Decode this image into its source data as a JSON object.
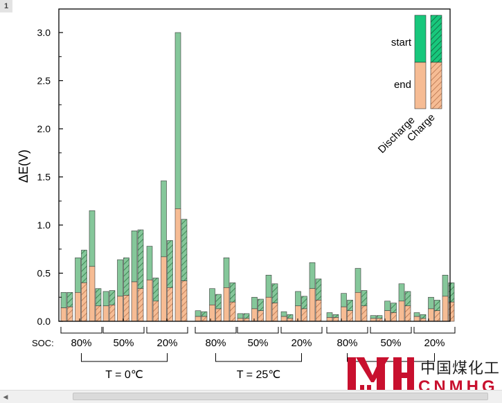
{
  "tab_number": "1",
  "chart_data": {
    "type": "bar",
    "ylabel": "ΔE(V)",
    "ylim": [
      0,
      3.25
    ],
    "yticks": [
      "0.0",
      "0.5",
      "1.0",
      "1.5",
      "2.0",
      "2.5",
      "3.0"
    ],
    "soc_label": "SOC:",
    "soc_groups": [
      "80%",
      "50%",
      "20%",
      "80%",
      "50%",
      "20%",
      "80%",
      "50%",
      "20%"
    ],
    "temperature_groups": [
      "T = 0℃",
      "T = 25℃"
    ],
    "legend": {
      "start": "start",
      "end": "end",
      "discharge": "Discharge",
      "charge": "Charge"
    },
    "colors": {
      "start": "#85c79a",
      "end": "#f6bc94",
      "charge_hatch": "#2f7a45",
      "end_hatch": "#b06b45",
      "legend_start": "#18c77c"
    },
    "clusters": [
      {
        "soc": "80%",
        "pairs": [
          {
            "discharge": {
              "end": 0.14,
              "start": 0.3
            },
            "charge": {
              "end": 0.15,
              "start": 0.3
            }
          },
          {
            "discharge": {
              "end": 0.3,
              "start": 0.66
            },
            "charge": {
              "end": 0.4,
              "start": 0.74
            }
          },
          {
            "discharge": {
              "end": 0.57,
              "start": 1.15
            },
            "charge": {
              "end": 0.16,
              "start": 0.34
            }
          }
        ]
      },
      {
        "soc": "50%",
        "pairs": [
          {
            "discharge": {
              "end": 0.16,
              "start": 0.31
            },
            "charge": {
              "end": 0.17,
              "start": 0.32
            }
          },
          {
            "discharge": {
              "end": 0.26,
              "start": 0.64
            },
            "charge": {
              "end": 0.27,
              "start": 0.66
            }
          },
          {
            "discharge": {
              "end": 0.41,
              "start": 0.94
            },
            "charge": {
              "end": 0.34,
              "start": 0.95
            }
          }
        ]
      },
      {
        "soc": "20%",
        "pairs": [
          {
            "discharge": {
              "end": 0.43,
              "start": 0.78
            },
            "charge": {
              "end": 0.21,
              "start": 0.45
            }
          },
          {
            "discharge": {
              "end": 0.67,
              "start": 1.46
            },
            "charge": {
              "end": 0.35,
              "start": 0.84
            }
          },
          {
            "discharge": {
              "end": 1.17,
              "start": 3.0
            },
            "charge": {
              "end": 0.42,
              "start": 1.06
            }
          }
        ]
      },
      {
        "soc": "80%",
        "pairs": [
          {
            "discharge": {
              "end": 0.05,
              "start": 0.11
            },
            "charge": {
              "end": 0.05,
              "start": 0.1
            }
          },
          {
            "discharge": {
              "end": 0.17,
              "start": 0.34
            },
            "charge": {
              "end": 0.13,
              "start": 0.28
            }
          },
          {
            "discharge": {
              "end": 0.35,
              "start": 0.66
            },
            "charge": {
              "end": 0.2,
              "start": 0.4
            }
          }
        ]
      },
      {
        "soc": "50%",
        "pairs": [
          {
            "discharge": {
              "end": 0.03,
              "start": 0.08
            },
            "charge": {
              "end": 0.03,
              "start": 0.08
            }
          },
          {
            "discharge": {
              "end": 0.13,
              "start": 0.25
            },
            "charge": {
              "end": 0.11,
              "start": 0.23
            }
          },
          {
            "discharge": {
              "end": 0.25,
              "start": 0.48
            },
            "charge": {
              "end": 0.19,
              "start": 0.39
            }
          }
        ]
      },
      {
        "soc": "20%",
        "pairs": [
          {
            "discharge": {
              "end": 0.05,
              "start": 0.1
            },
            "charge": {
              "end": 0.03,
              "start": 0.07
            }
          },
          {
            "discharge": {
              "end": 0.16,
              "start": 0.31
            },
            "charge": {
              "end": 0.13,
              "start": 0.26
            }
          },
          {
            "discharge": {
              "end": 0.34,
              "start": 0.61
            },
            "charge": {
              "end": 0.22,
              "start": 0.44
            }
          }
        ]
      },
      {
        "soc": "80%",
        "pairs": [
          {
            "discharge": {
              "end": 0.04,
              "start": 0.09
            },
            "charge": {
              "end": 0.04,
              "start": 0.07
            }
          },
          {
            "discharge": {
              "end": 0.15,
              "start": 0.29
            },
            "charge": {
              "end": 0.11,
              "start": 0.22
            }
          },
          {
            "discharge": {
              "end": 0.3,
              "start": 0.55
            },
            "charge": {
              "end": 0.16,
              "start": 0.32
            }
          }
        ]
      },
      {
        "soc": "50%",
        "pairs": [
          {
            "discharge": {
              "end": 0.03,
              "start": 0.06
            },
            "charge": {
              "end": 0.03,
              "start": 0.06
            }
          },
          {
            "discharge": {
              "end": 0.11,
              "start": 0.21
            },
            "charge": {
              "end": 0.09,
              "start": 0.19
            }
          },
          {
            "discharge": {
              "end": 0.21,
              "start": 0.39
            },
            "charge": {
              "end": 0.16,
              "start": 0.31
            }
          }
        ]
      },
      {
        "soc": "20%",
        "pairs": [
          {
            "discharge": {
              "end": 0.05,
              "start": 0.09
            },
            "charge": {
              "end": 0.03,
              "start": 0.07
            }
          },
          {
            "discharge": {
              "end": 0.13,
              "start": 0.25
            },
            "charge": {
              "end": 0.11,
              "start": 0.22
            }
          },
          {
            "discharge": {
              "end": 0.26,
              "start": 0.48
            },
            "charge": {
              "end": 0.2,
              "start": 0.4
            }
          }
        ]
      }
    ]
  },
  "watermark": {
    "cn": "中国煤化工",
    "en": "CNMHG"
  }
}
